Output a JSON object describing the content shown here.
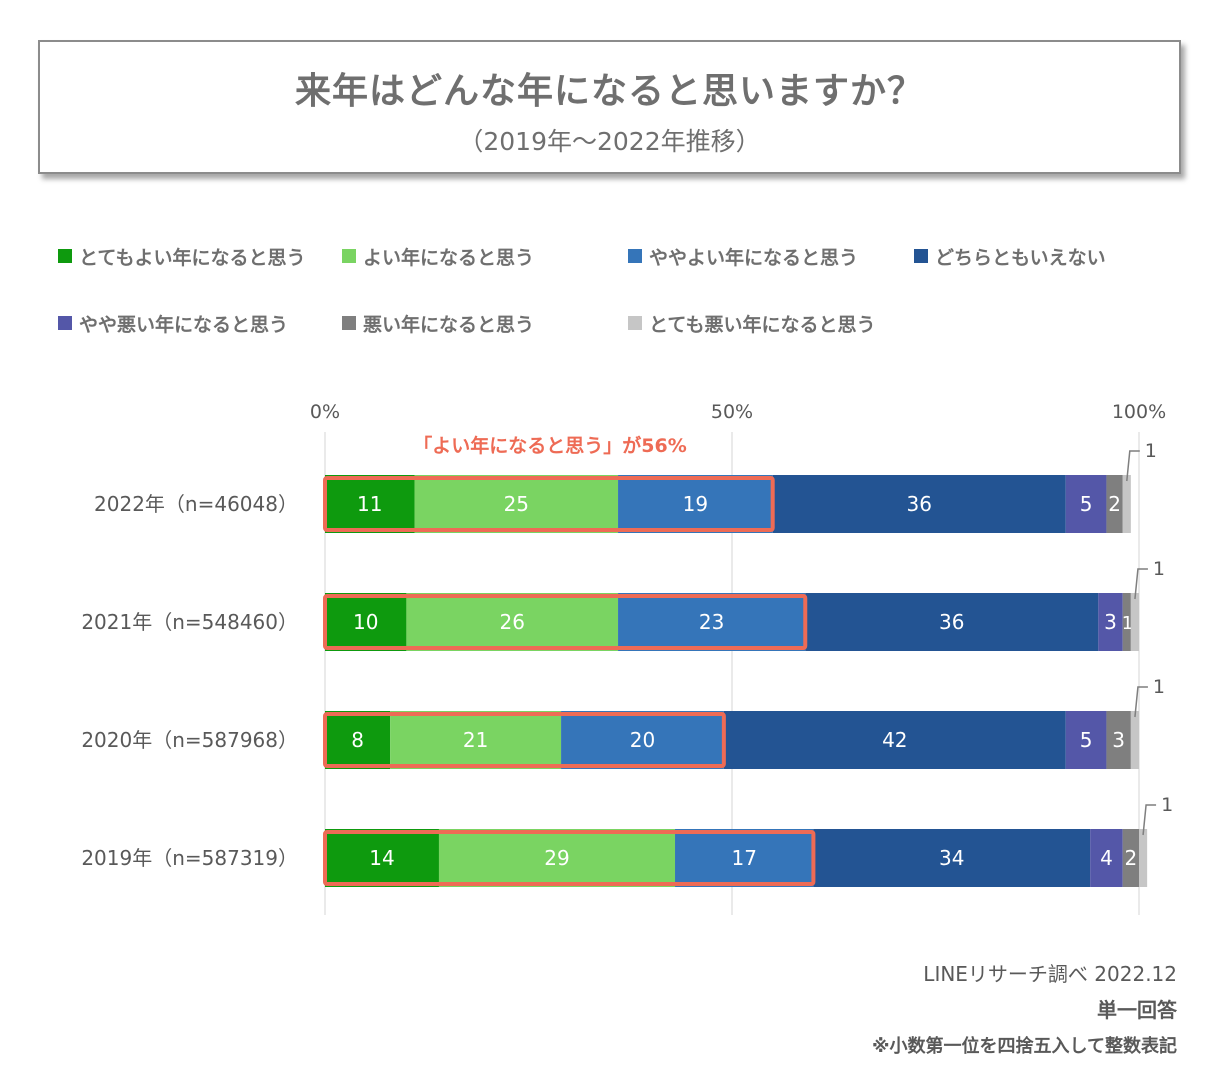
{
  "header": {
    "title": "来年はどんな年になると思いますか？",
    "subtitle": "（2019年～2022年推移）"
  },
  "legend": [
    {
      "label": "とてもよい年になると思う",
      "color": "#0e9a0e"
    },
    {
      "label": "よい年になると思う",
      "color": "#7ad462"
    },
    {
      "label": "ややよい年になると思う",
      "color": "#3575b9"
    },
    {
      "label": "どちらともいえない",
      "color": "#235493"
    },
    {
      "label": "やや悪い年になると思う",
      "color": "#5457a8"
    },
    {
      "label": "悪い年になると思う",
      "color": "#7f7f7f"
    },
    {
      "label": "とても悪い年になると思う",
      "color": "#c6c6c6"
    }
  ],
  "footer": {
    "source": "LINEリサーチ調べ 2022.12",
    "answer_type": "単一回答",
    "note": "※小数第一位を四捨五入して整数表記"
  },
  "chart_data": {
    "type": "bar",
    "orientation": "horizontal",
    "stacked": true,
    "xlim": [
      0,
      100
    ],
    "ticks": [
      "0%",
      "50%",
      "100%"
    ],
    "categories": [
      "2022年（n=46048）",
      "2021年（n=548460）",
      "2020年（n=587968）",
      "2019年（n=587319）"
    ],
    "series": [
      {
        "name": "とてもよい年になると思う",
        "values": [
          11,
          10,
          8,
          14
        ]
      },
      {
        "name": "よい年になると思う",
        "values": [
          25,
          26,
          21,
          29
        ]
      },
      {
        "name": "ややよい年になると思う",
        "values": [
          19,
          23,
          20,
          17
        ]
      },
      {
        "name": "どちらともいえない",
        "values": [
          36,
          36,
          42,
          34
        ]
      },
      {
        "name": "やや悪い年になると思う",
        "values": [
          5,
          3,
          5,
          4
        ]
      },
      {
        "name": "悪い年になると思う",
        "values": [
          2,
          1,
          3,
          2
        ]
      },
      {
        "name": "とても悪い年になると思う",
        "values": [
          1,
          1,
          1,
          1
        ]
      }
    ],
    "annotation": "「よい年になると思う」が56%",
    "highlight_color": "#ee6b55"
  }
}
